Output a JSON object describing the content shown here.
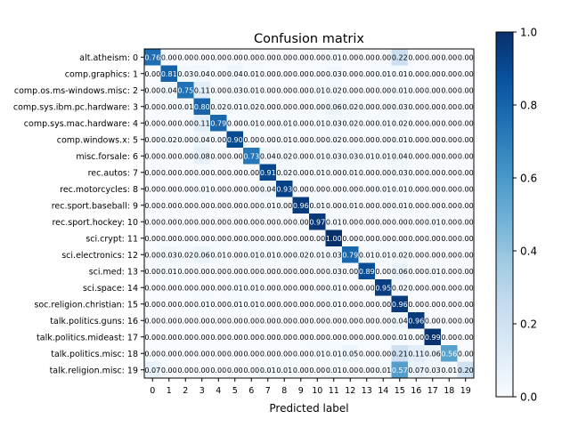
{
  "chart_data": {
    "type": "heatmap",
    "title": "Confusion matrix",
    "xlabel": "Predicted label",
    "ylabel": "",
    "row_labels": [
      "alt.atheism: 0",
      "comp.graphics: 1",
      "comp.os.ms-windows.misc: 2",
      "comp.sys.ibm.pc.hardware: 3",
      "comp.sys.mac.hardware: 4",
      "comp.windows.x: 5",
      "misc.forsale: 6",
      "rec.autos: 7",
      "rec.motorcycles: 8",
      "rec.sport.baseball: 9",
      "rec.sport.hockey: 10",
      "sci.crypt: 11",
      "sci.electronics: 12",
      "sci.med: 13",
      "sci.space: 14",
      "soc.religion.christian: 15",
      "talk.politics.guns: 16",
      "talk.politics.mideast: 17",
      "talk.politics.misc: 18",
      "talk.religion.misc: 19"
    ],
    "col_labels": [
      "0",
      "1",
      "2",
      "3",
      "4",
      "5",
      "6",
      "7",
      "8",
      "9",
      "10",
      "11",
      "12",
      "13",
      "14",
      "15",
      "16",
      "17",
      "18",
      "19"
    ],
    "matrix": [
      [
        0.76,
        0.0,
        0.0,
        0.0,
        0.0,
        0.0,
        0.0,
        0.0,
        0.0,
        0.0,
        0.0,
        0.01,
        0.0,
        0.0,
        0.0,
        0.22,
        0.0,
        0.0,
        0.0,
        0.0
      ],
      [
        0.0,
        0.81,
        0.03,
        0.04,
        0.0,
        0.04,
        0.01,
        0.0,
        0.0,
        0.0,
        0.0,
        0.03,
        0.0,
        0.0,
        0.01,
        0.01,
        0.0,
        0.0,
        0.0,
        0.0
      ],
      [
        0.0,
        0.04,
        0.75,
        0.11,
        0.0,
        0.03,
        0.01,
        0.0,
        0.0,
        0.0,
        0.01,
        0.02,
        0.0,
        0.0,
        0.0,
        0.01,
        0.0,
        0.0,
        0.0,
        0.0
      ],
      [
        0.0,
        0.0,
        0.01,
        0.8,
        0.02,
        0.01,
        0.02,
        0.0,
        0.0,
        0.0,
        0.0,
        0.06,
        0.02,
        0.0,
        0.0,
        0.03,
        0.0,
        0.0,
        0.0,
        0.0
      ],
      [
        0.0,
        0.0,
        0.0,
        0.11,
        0.79,
        0.0,
        0.01,
        0.0,
        0.01,
        0.0,
        0.01,
        0.03,
        0.02,
        0.0,
        0.01,
        0.02,
        0.0,
        0.0,
        0.0,
        0.0
      ],
      [
        0.0,
        0.02,
        0.0,
        0.04,
        0.0,
        0.9,
        0.0,
        0.0,
        0.01,
        0.0,
        0.0,
        0.02,
        0.0,
        0.0,
        0.0,
        0.01,
        0.0,
        0.0,
        0.0,
        0.0
      ],
      [
        0.0,
        0.0,
        0.0,
        0.08,
        0.0,
        0.0,
        0.73,
        0.04,
        0.02,
        0.0,
        0.01,
        0.03,
        0.03,
        0.01,
        0.01,
        0.04,
        0.0,
        0.0,
        0.0,
        0.0
      ],
      [
        0.0,
        0.0,
        0.0,
        0.0,
        0.0,
        0.0,
        0.0,
        0.91,
        0.02,
        0.0,
        0.01,
        0.0,
        0.01,
        0.0,
        0.0,
        0.03,
        0.0,
        0.0,
        0.0,
        0.0
      ],
      [
        0.0,
        0.0,
        0.0,
        0.01,
        0.0,
        0.0,
        0.0,
        0.04,
        0.93,
        0.0,
        0.0,
        0.0,
        0.0,
        0.0,
        0.01,
        0.01,
        0.0,
        0.0,
        0.0,
        0.0
      ],
      [
        0.0,
        0.0,
        0.0,
        0.0,
        0.0,
        0.0,
        0.0,
        0.01,
        0.0,
        0.96,
        0.01,
        0.0,
        0.01,
        0.0,
        0.0,
        0.01,
        0.0,
        0.0,
        0.0,
        0.0
      ],
      [
        0.0,
        0.0,
        0.0,
        0.0,
        0.0,
        0.0,
        0.0,
        0.0,
        0.0,
        0.0,
        0.97,
        0.01,
        0.0,
        0.0,
        0.0,
        0.0,
        0.0,
        0.01,
        0.0,
        0.0
      ],
      [
        0.0,
        0.0,
        0.0,
        0.0,
        0.0,
        0.0,
        0.0,
        0.0,
        0.0,
        0.0,
        0.0,
        1.0,
        0.0,
        0.0,
        0.0,
        0.0,
        0.0,
        0.0,
        0.0,
        0.0
      ],
      [
        0.0,
        0.03,
        0.02,
        0.06,
        0.01,
        0.0,
        0.01,
        0.01,
        0.0,
        0.02,
        0.01,
        0.03,
        0.79,
        0.01,
        0.01,
        0.02,
        0.0,
        0.0,
        0.0,
        0.0
      ],
      [
        0.0,
        0.01,
        0.0,
        0.0,
        0.0,
        0.0,
        0.0,
        0.0,
        0.0,
        0.0,
        0.0,
        0.03,
        0.0,
        0.89,
        0.0,
        0.06,
        0.0,
        0.01,
        0.0,
        0.0
      ],
      [
        0.0,
        0.0,
        0.0,
        0.0,
        0.0,
        0.01,
        0.01,
        0.0,
        0.0,
        0.0,
        0.0,
        0.01,
        0.0,
        0.0,
        0.95,
        0.02,
        0.0,
        0.0,
        0.0,
        0.0
      ],
      [
        0.0,
        0.0,
        0.0,
        0.01,
        0.0,
        0.01,
        0.01,
        0.0,
        0.0,
        0.0,
        0.0,
        0.01,
        0.0,
        0.0,
        0.0,
        0.96,
        0.0,
        0.0,
        0.0,
        0.0
      ],
      [
        0.0,
        0.0,
        0.0,
        0.0,
        0.0,
        0.0,
        0.0,
        0.0,
        0.0,
        0.0,
        0.0,
        0.0,
        0.0,
        0.0,
        0.0,
        0.04,
        0.96,
        0.0,
        0.0,
        0.0
      ],
      [
        0.0,
        0.0,
        0.0,
        0.0,
        0.0,
        0.0,
        0.0,
        0.0,
        0.0,
        0.0,
        0.0,
        0.0,
        0.0,
        0.0,
        0.0,
        0.01,
        0.0,
        0.99,
        0.0,
        0.0
      ],
      [
        0.0,
        0.0,
        0.0,
        0.0,
        0.0,
        0.0,
        0.0,
        0.0,
        0.0,
        0.0,
        0.01,
        0.01,
        0.05,
        0.0,
        0.0,
        0.21,
        0.11,
        0.06,
        0.56,
        0.0
      ],
      [
        0.07,
        0.0,
        0.0,
        0.0,
        0.0,
        0.0,
        0.0,
        0.01,
        0.01,
        0.0,
        0.0,
        0.01,
        0.0,
        0.0,
        0.01,
        0.57,
        0.07,
        0.03,
        0.01,
        0.2
      ]
    ],
    "colorbar": {
      "min": 0.0,
      "max": 1.0,
      "ticks": [
        "0.0",
        "0.2",
        "0.4",
        "0.6",
        "0.8",
        "1.0"
      ],
      "colormap": "Blues"
    },
    "grid": false
  }
}
